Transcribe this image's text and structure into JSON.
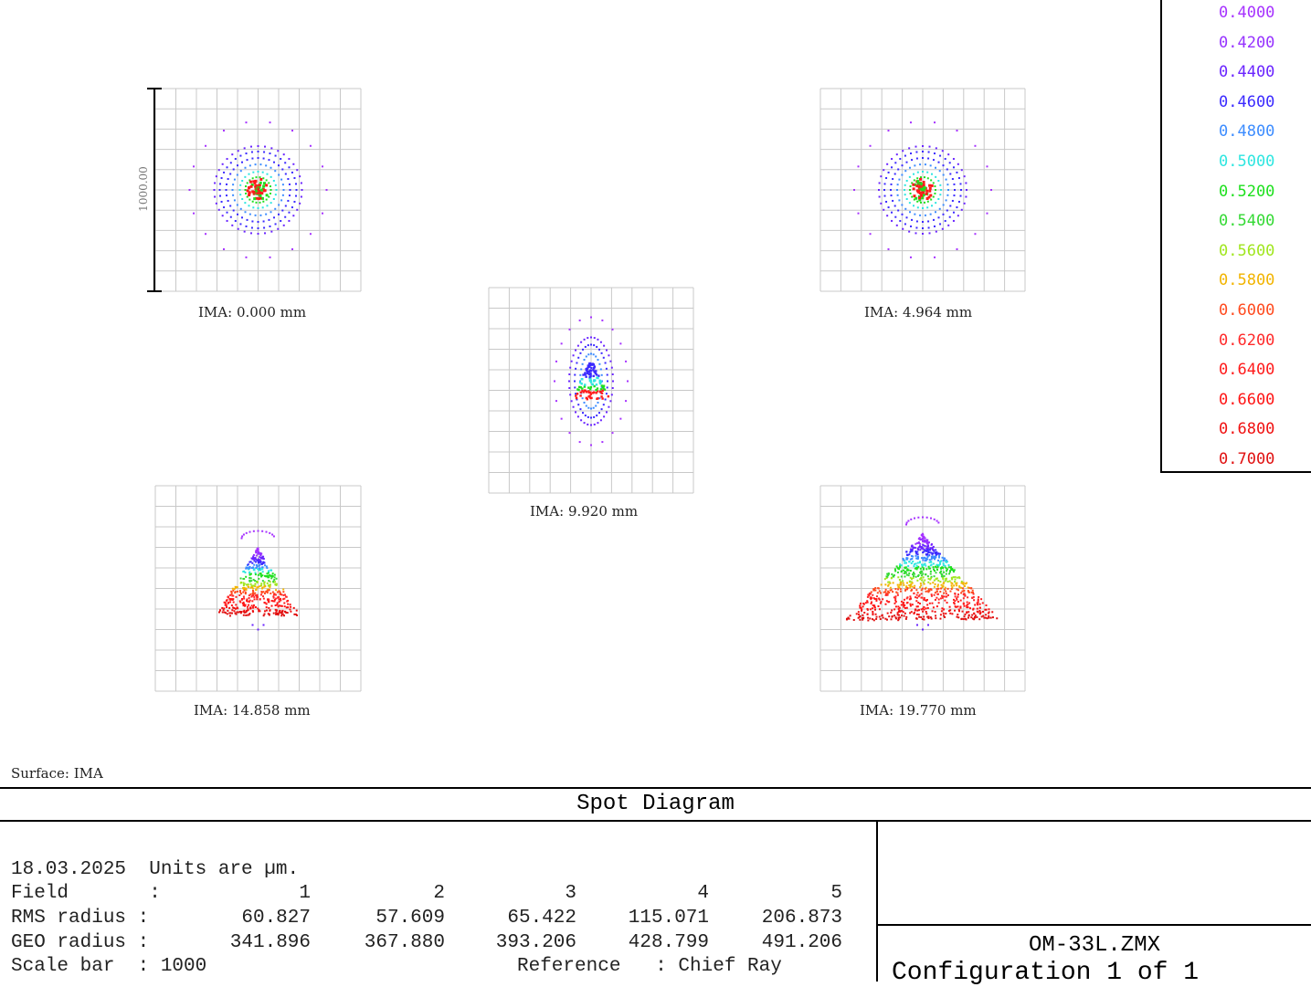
{
  "legend": {
    "wavelengths": [
      "0.4000",
      "0.4200",
      "0.4400",
      "0.4600",
      "0.4800",
      "0.5000",
      "0.5200",
      "0.5400",
      "0.5600",
      "0.5800",
      "0.6000",
      "0.6200",
      "0.6400",
      "0.6600",
      "0.6800",
      "0.7000"
    ],
    "colors": [
      "#a632ff",
      "#9632ff",
      "#6a24ff",
      "#3b2aff",
      "#3c8cff",
      "#2ee6e0",
      "#1ee01e",
      "#34d934",
      "#a0e61e",
      "#f2b400",
      "#ff4a1e",
      "#ff2a2a",
      "#ff1a1a",
      "#ff1414",
      "#f01010",
      "#e01010"
    ]
  },
  "spots": [
    {
      "label": "IMA: 0.000 mm"
    },
    {
      "label": "IMA: 4.964 mm"
    },
    {
      "label": "IMA: 9.920 mm"
    },
    {
      "label": "IMA: 14.858 mm"
    },
    {
      "label": "IMA: 19.770 mm"
    }
  ],
  "scale_bar_label": "1000.00",
  "surface": "Surface: IMA",
  "title": "Spot Diagram",
  "info": {
    "date_units": "18.03.2025  Units are µm.",
    "field_label": "Field       :",
    "fields": [
      "1",
      "2",
      "3",
      "4",
      "5"
    ],
    "rms_label": "RMS radius :",
    "rms": [
      "60.827",
      "57.609",
      "65.422",
      "115.071",
      "206.873"
    ],
    "geo_label": "GEO radius :",
    "geo": [
      "341.896",
      "367.880",
      "393.206",
      "428.799",
      "491.206"
    ],
    "scale_label": "Scale bar  : 1000",
    "reference": "Reference   : Chief Ray"
  },
  "lens_file": "OM-33L.ZMX",
  "configuration": "Configuration 1 of 1",
  "chart_data": {
    "type": "scatter",
    "title": "Spot Diagram",
    "units": "µm",
    "scale_bar_um": 1000,
    "reference": "Chief Ray",
    "fields": [
      {
        "field": 1,
        "image_height_mm": 0.0,
        "rms_radius_um": 60.827,
        "geo_radius_um": 341.896
      },
      {
        "field": 2,
        "image_height_mm": 4.964,
        "rms_radius_um": 57.609,
        "geo_radius_um": 367.88
      },
      {
        "field": 3,
        "image_height_mm": 9.92,
        "rms_radius_um": 65.422,
        "geo_radius_um": 393.206
      },
      {
        "field": 4,
        "image_height_mm": 14.858,
        "rms_radius_um": 115.071,
        "geo_radius_um": 428.799
      },
      {
        "field": 5,
        "image_height_mm": 19.77,
        "rms_radius_um": 206.873,
        "geo_radius_um": 491.206
      }
    ],
    "wavelengths_um": [
      0.4,
      0.42,
      0.44,
      0.46,
      0.48,
      0.5,
      0.52,
      0.54,
      0.56,
      0.58,
      0.6,
      0.62,
      0.64,
      0.66,
      0.68,
      0.7
    ]
  }
}
